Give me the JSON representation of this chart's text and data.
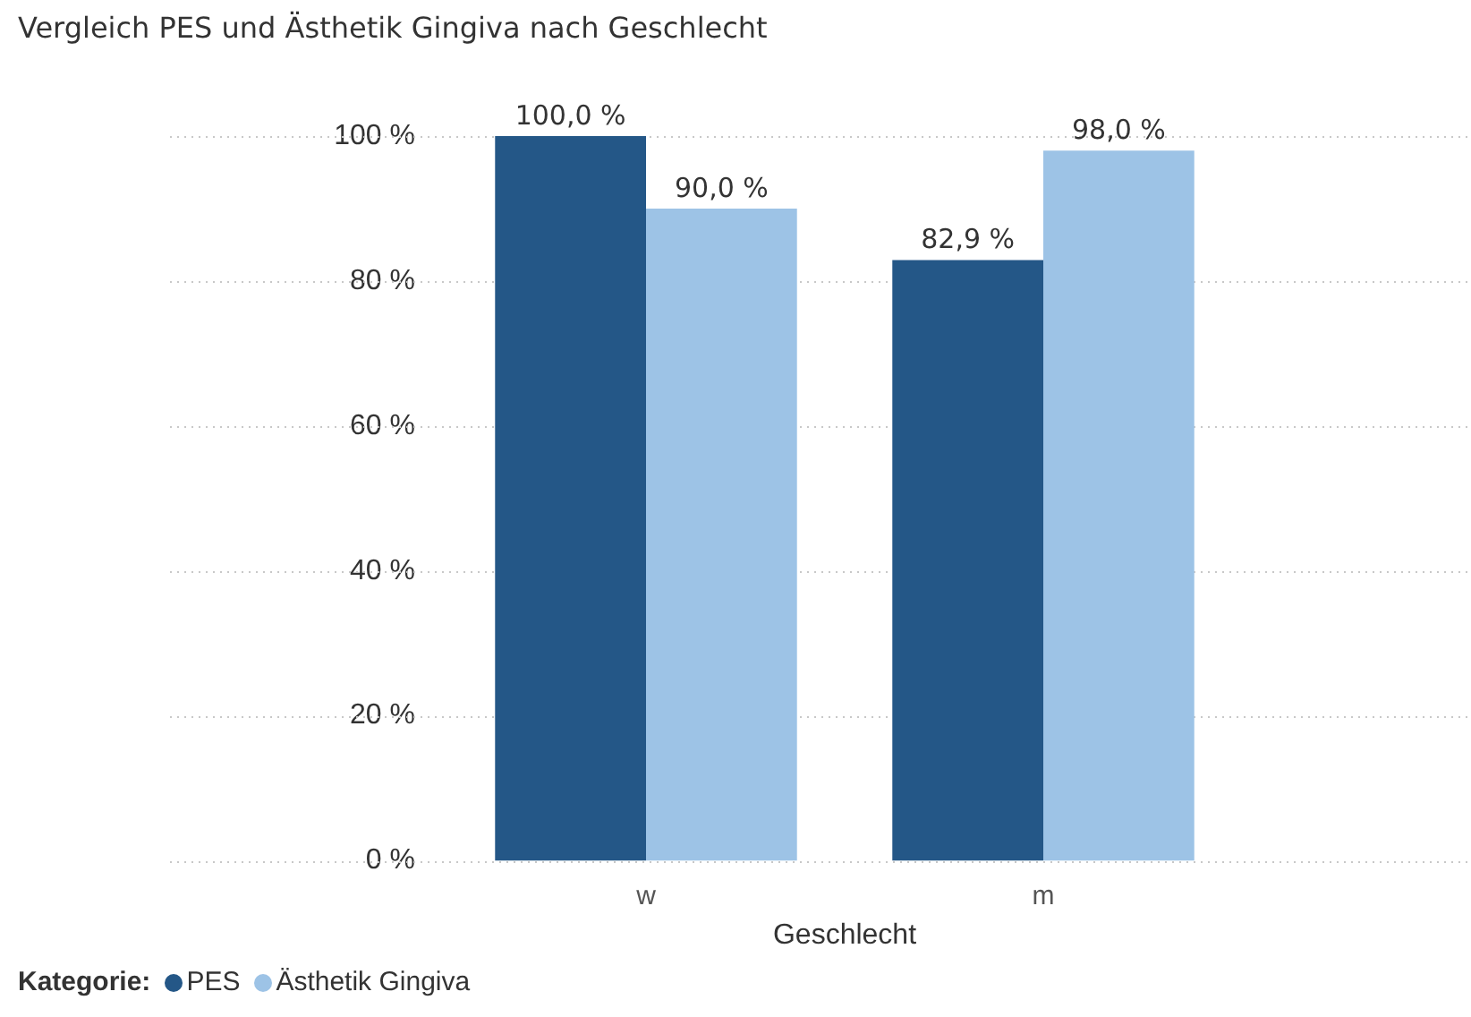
{
  "chart_data": {
    "type": "bar",
    "title": "Vergleich PES und Ästhetik Gingiva nach Geschlecht",
    "xlabel": "Geschlecht",
    "legend_title": "Kategorie:",
    "categories": [
      "w",
      "m"
    ],
    "series": [
      {
        "name": "PES",
        "color": "#245787",
        "values": [
          100.0,
          82.9
        ],
        "value_labels": [
          "100,0 %",
          "82,9 %"
        ]
      },
      {
        "name": "Ästhetik Gingiva",
        "color": "#9dc3e6",
        "values": [
          90.0,
          98.0
        ],
        "value_labels": [
          "90,0 %",
          "98,0 %"
        ]
      }
    ],
    "ylim": [
      0,
      100
    ],
    "yticks": [
      {
        "value": 0,
        "label": "0 %"
      },
      {
        "value": 20,
        "label": "20 %"
      },
      {
        "value": 40,
        "label": "40 %"
      },
      {
        "value": 60,
        "label": "60 %"
      },
      {
        "value": 80,
        "label": "80 %"
      },
      {
        "value": 100,
        "label": "100 %"
      }
    ],
    "grid": "y",
    "legend": "bottom left"
  }
}
